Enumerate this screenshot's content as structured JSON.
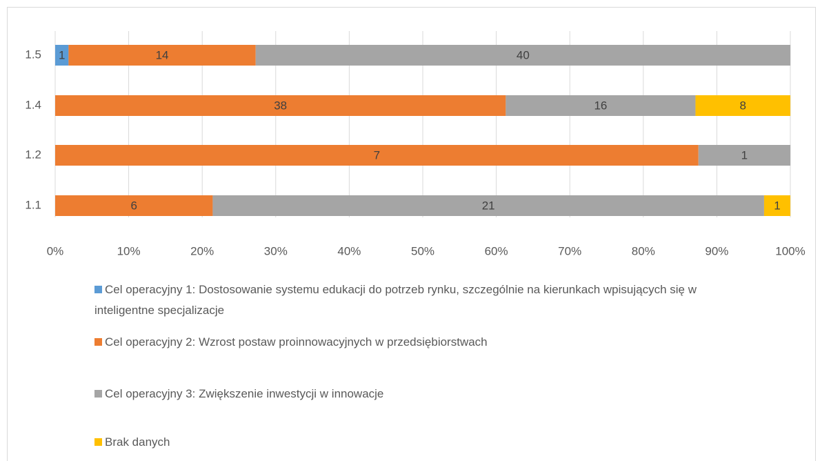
{
  "chart_data": {
    "type": "stacked_bar_100",
    "categories": [
      "1.5",
      "1.4",
      "1.2",
      "1.1"
    ],
    "series": [
      {
        "name": "Cel operacyjny 1: Dostosowanie systemu edukacji do potrzeb rynku, szczególnie na kierunkach wpisujących się w inteligentne specjalizacje",
        "color": "#5b9bd5",
        "values": [
          1,
          null,
          null,
          null
        ]
      },
      {
        "name": "Cel operacyjny 2: Wzrost postaw proinnowacyjnych w przedsiębiorstwach",
        "color": "#ed7d31",
        "values": [
          14,
          38,
          7,
          6
        ]
      },
      {
        "name": "Cel operacyjny 3: Zwiększenie inwestycji w innowacje",
        "color": "#a5a5a5",
        "values": [
          40,
          16,
          1,
          21
        ]
      },
      {
        "name": "Brak danych",
        "color": "#ffc000",
        "values": [
          null,
          8,
          null,
          1
        ]
      }
    ],
    "xlim": [
      0,
      100
    ],
    "xticks": [
      {
        "value": 0,
        "label": "0%"
      },
      {
        "value": 10,
        "label": "10%"
      },
      {
        "value": 20,
        "label": "20%"
      },
      {
        "value": 30,
        "label": "30%"
      },
      {
        "value": 40,
        "label": "40%"
      },
      {
        "value": 50,
        "label": "50%"
      },
      {
        "value": 60,
        "label": "60%"
      },
      {
        "value": 70,
        "label": "70%"
      },
      {
        "value": 80,
        "label": "80%"
      },
      {
        "value": 90,
        "label": "90%"
      },
      {
        "value": 100,
        "label": "100%"
      }
    ],
    "grid": true,
    "legend": "bottom"
  }
}
